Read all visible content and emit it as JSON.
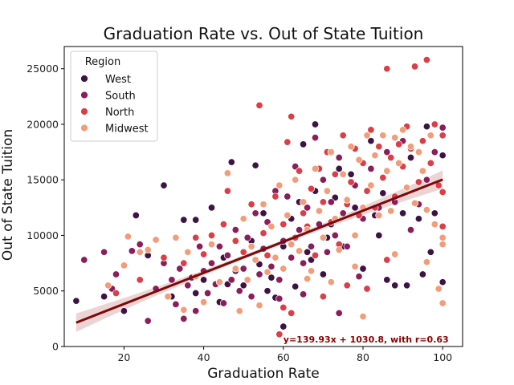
{
  "chart_data": {
    "type": "scatter",
    "title": "Graduation Rate vs. Out of State Tuition",
    "xlabel": "Graduation Rate",
    "ylabel": "Out of State Tuition",
    "xlim": [
      5,
      105
    ],
    "ylim": [
      0,
      27000
    ],
    "xticks": [
      20,
      40,
      60,
      80,
      100
    ],
    "yticks": [
      0,
      5000,
      10000,
      15000,
      20000,
      25000
    ],
    "grid": false,
    "legend": {
      "title": "Region",
      "placement": "top-left",
      "entries": [
        {
          "name": "West",
          "color": "#3d1244"
        },
        {
          "name": "South",
          "color": "#8a1d5a"
        },
        {
          "name": "North",
          "color": "#dc3d46"
        },
        {
          "name": "Midwest",
          "color": "#f39c7a"
        }
      ]
    },
    "regression": {
      "slope": 139.93,
      "intercept": 1030.8,
      "r": 0.63,
      "x_range": [
        8,
        100
      ],
      "color": "#7a0a0a",
      "band_color": "#e8c9c9"
    },
    "annotation": {
      "text": "y=139.93x + 1030.8, with r=0.63",
      "x": 60,
      "y": 300,
      "color": "#8b0000"
    },
    "series": [
      {
        "name": "West",
        "color": "#3d1244",
        "points": [
          [
            8,
            4100
          ],
          [
            15,
            4500
          ],
          [
            20,
            3200
          ],
          [
            23,
            11800
          ],
          [
            26,
            8200
          ],
          [
            30,
            14500
          ],
          [
            32,
            4500
          ],
          [
            35,
            11400
          ],
          [
            38,
            11400
          ],
          [
            38,
            4800
          ],
          [
            40,
            6000
          ],
          [
            42,
            12500
          ],
          [
            45,
            8000
          ],
          [
            47,
            16600
          ],
          [
            48,
            6800
          ],
          [
            50,
            5500
          ],
          [
            52,
            9500
          ],
          [
            53,
            16300
          ],
          [
            55,
            12000
          ],
          [
            56,
            5000
          ],
          [
            58,
            4400
          ],
          [
            60,
            1800
          ],
          [
            60,
            9000
          ],
          [
            62,
            11500
          ],
          [
            64,
            13000
          ],
          [
            65,
            18200
          ],
          [
            66,
            8500
          ],
          [
            68,
            20000
          ],
          [
            68,
            14000
          ],
          [
            70,
            6500
          ],
          [
            72,
            11000
          ],
          [
            74,
            16000
          ],
          [
            75,
            9000
          ],
          [
            78,
            12500
          ],
          [
            80,
            7000
          ],
          [
            82,
            18500
          ],
          [
            84,
            10000
          ],
          [
            85,
            13800
          ],
          [
            86,
            6000
          ],
          [
            88,
            5500
          ],
          [
            90,
            12000
          ],
          [
            91,
            5500
          ],
          [
            92,
            17000
          ],
          [
            94,
            11500
          ],
          [
            95,
            6500
          ],
          [
            96,
            19800
          ],
          [
            97,
            8500
          ],
          [
            98,
            12000
          ],
          [
            100,
            17200
          ],
          [
            100,
            5800
          ],
          [
            44,
            4000
          ],
          [
            46,
            5600
          ],
          [
            54,
            7400
          ],
          [
            57,
            6200
          ],
          [
            63,
            5400
          ],
          [
            67,
            7800
          ],
          [
            71,
            9800
          ],
          [
            73,
            13400
          ],
          [
            77,
            15500
          ],
          [
            83,
            11800
          ]
        ]
      },
      {
        "name": "South",
        "color": "#8a1d5a",
        "points": [
          [
            10,
            7800
          ],
          [
            15,
            8500
          ],
          [
            17,
            5200
          ],
          [
            18,
            6500
          ],
          [
            22,
            8600
          ],
          [
            24,
            9200
          ],
          [
            26,
            2300
          ],
          [
            28,
            5200
          ],
          [
            30,
            7500
          ],
          [
            32,
            6000
          ],
          [
            33,
            3800
          ],
          [
            34,
            7000
          ],
          [
            35,
            2500
          ],
          [
            36,
            5500
          ],
          [
            37,
            6200
          ],
          [
            38,
            3200
          ],
          [
            39,
            9000
          ],
          [
            40,
            6800
          ],
          [
            41,
            4800
          ],
          [
            42,
            7500
          ],
          [
            43,
            5600
          ],
          [
            44,
            9000
          ],
          [
            45,
            3900
          ],
          [
            46,
            8200
          ],
          [
            47,
            6000
          ],
          [
            48,
            10500
          ],
          [
            49,
            5000
          ],
          [
            50,
            7000
          ],
          [
            51,
            9800
          ],
          [
            52,
            4500
          ],
          [
            53,
            12000
          ],
          [
            54,
            6500
          ],
          [
            55,
            8800
          ],
          [
            56,
            11200
          ],
          [
            57,
            7200
          ],
          [
            58,
            14000
          ],
          [
            59,
            6000
          ],
          [
            60,
            9500
          ],
          [
            61,
            13500
          ],
          [
            62,
            8000
          ],
          [
            63,
            16200
          ],
          [
            64,
            10500
          ],
          [
            65,
            7500
          ],
          [
            66,
            12500
          ],
          [
            67,
            9000
          ],
          [
            68,
            18800
          ],
          [
            69,
            11000
          ],
          [
            70,
            15000
          ],
          [
            71,
            8500
          ],
          [
            72,
            13000
          ],
          [
            73,
            10000
          ],
          [
            74,
            17000
          ],
          [
            75,
            12000
          ],
          [
            76,
            9000
          ],
          [
            78,
            14500
          ],
          [
            80,
            11500
          ],
          [
            82,
            16000
          ],
          [
            84,
            12500
          ],
          [
            86,
            17500
          ],
          [
            88,
            13000
          ],
          [
            90,
            18500
          ],
          [
            92,
            10500
          ],
          [
            94,
            12800
          ],
          [
            96,
            15000
          ],
          [
            98,
            17500
          ],
          [
            100,
            19700
          ],
          [
            59,
            4300
          ],
          [
            65,
            4700
          ],
          [
            74,
            3000
          ],
          [
            79,
            6300
          ]
        ]
      },
      {
        "name": "North",
        "color": "#dc3d46",
        "points": [
          [
            18,
            4800
          ],
          [
            24,
            6000
          ],
          [
            30,
            8000
          ],
          [
            35,
            7500
          ],
          [
            38,
            9800
          ],
          [
            40,
            8300
          ],
          [
            42,
            10000
          ],
          [
            45,
            11000
          ],
          [
            46,
            14000
          ],
          [
            48,
            9500
          ],
          [
            50,
            8500
          ],
          [
            52,
            12800
          ],
          [
            54,
            21700
          ],
          [
            55,
            10200
          ],
          [
            56,
            8200
          ],
          [
            58,
            13500
          ],
          [
            59,
            1100
          ],
          [
            60,
            11000
          ],
          [
            61,
            18400
          ],
          [
            62,
            20700
          ],
          [
            63,
            9800
          ],
          [
            64,
            15800
          ],
          [
            65,
            12000
          ],
          [
            66,
            10800
          ],
          [
            67,
            14200
          ],
          [
            68,
            8200
          ],
          [
            69,
            16000
          ],
          [
            70,
            13000
          ],
          [
            71,
            17500
          ],
          [
            72,
            11200
          ],
          [
            73,
            15500
          ],
          [
            74,
            9200
          ],
          [
            75,
            19000
          ],
          [
            76,
            12800
          ],
          [
            77,
            14800
          ],
          [
            78,
            17800
          ],
          [
            79,
            11800
          ],
          [
            80,
            16500
          ],
          [
            81,
            14000
          ],
          [
            82,
            19500
          ],
          [
            83,
            12500
          ],
          [
            84,
            18000
          ],
          [
            85,
            15200
          ],
          [
            86,
            25000
          ],
          [
            87,
            17000
          ],
          [
            88,
            13500
          ],
          [
            89,
            18200
          ],
          [
            90,
            16200
          ],
          [
            91,
            19800
          ],
          [
            92,
            17800
          ],
          [
            93,
            25200
          ],
          [
            94,
            14800
          ],
          [
            95,
            18500
          ],
          [
            96,
            25800
          ],
          [
            97,
            16500
          ],
          [
            98,
            20000
          ],
          [
            99,
            14500
          ],
          [
            100,
            13900
          ],
          [
            100,
            19000
          ],
          [
            100,
            10800
          ],
          [
            60,
            3500
          ],
          [
            62,
            3000
          ],
          [
            70,
            4500
          ],
          [
            76,
            5500
          ],
          [
            81,
            5200
          ],
          [
            86,
            7800
          ]
        ]
      },
      {
        "name": "Midwest",
        "color": "#f39c7a",
        "points": [
          [
            16,
            5500
          ],
          [
            20,
            7300
          ],
          [
            21,
            9900
          ],
          [
            24,
            8500
          ],
          [
            26,
            8700
          ],
          [
            28,
            9600
          ],
          [
            31,
            4500
          ],
          [
            33,
            9800
          ],
          [
            35,
            3300
          ],
          [
            36,
            8500
          ],
          [
            38,
            6300
          ],
          [
            40,
            4000
          ],
          [
            42,
            9200
          ],
          [
            44,
            5800
          ],
          [
            46,
            15600
          ],
          [
            48,
            7000
          ],
          [
            49,
            3200
          ],
          [
            50,
            11500
          ],
          [
            51,
            6000
          ],
          [
            52,
            9000
          ],
          [
            53,
            7800
          ],
          [
            54,
            3700
          ],
          [
            55,
            12800
          ],
          [
            56,
            6700
          ],
          [
            57,
            10800
          ],
          [
            58,
            8000
          ],
          [
            59,
            14500
          ],
          [
            60,
            7000
          ],
          [
            61,
            11800
          ],
          [
            62,
            9200
          ],
          [
            63,
            15000
          ],
          [
            64,
            8600
          ],
          [
            65,
            13000
          ],
          [
            66,
            10500
          ],
          [
            67,
            6800
          ],
          [
            68,
            16000
          ],
          [
            69,
            12200
          ],
          [
            70,
            9800
          ],
          [
            71,
            14000
          ],
          [
            72,
            17500
          ],
          [
            73,
            11500
          ],
          [
            74,
            8700
          ],
          [
            75,
            15500
          ],
          [
            76,
            13200
          ],
          [
            77,
            18000
          ],
          [
            78,
            10000
          ],
          [
            79,
            16800
          ],
          [
            80,
            2700
          ],
          [
            80,
            12500
          ],
          [
            81,
            19000
          ],
          [
            82,
            14500
          ],
          [
            83,
            17200
          ],
          [
            84,
            11800
          ],
          [
            85,
            19000
          ],
          [
            86,
            15800
          ],
          [
            87,
            12200
          ],
          [
            88,
            18800
          ],
          [
            89,
            16500
          ],
          [
            90,
            19500
          ],
          [
            91,
            14300
          ],
          [
            92,
            18000
          ],
          [
            93,
            12900
          ],
          [
            94,
            17500
          ],
          [
            95,
            15800
          ],
          [
            96,
            12300
          ],
          [
            97,
            19000
          ],
          [
            98,
            11000
          ],
          [
            99,
            5200
          ],
          [
            100,
            9800
          ],
          [
            100,
            3900
          ],
          [
            100,
            9200
          ],
          [
            66,
            6100
          ],
          [
            72,
            5800
          ],
          [
            78,
            7200
          ],
          [
            88,
            8300
          ],
          [
            96,
            7600
          ]
        ]
      }
    ]
  }
}
